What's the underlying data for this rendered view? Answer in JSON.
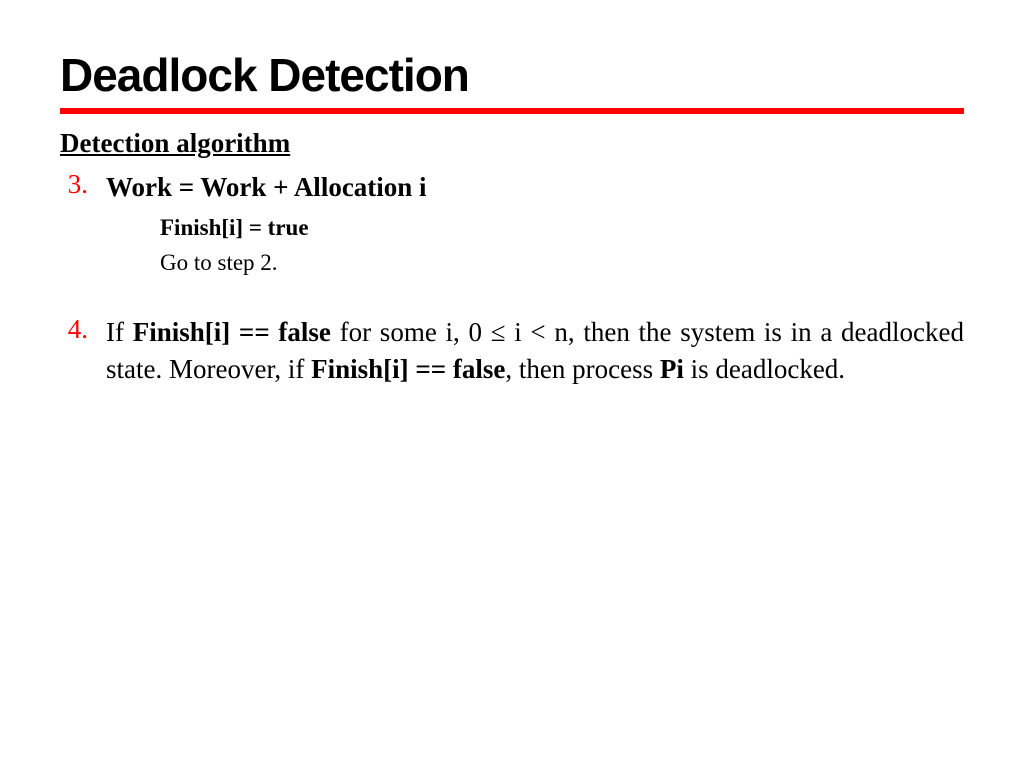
{
  "slide": {
    "title": "Deadlock Detection",
    "subtitle": "Detection algorithm",
    "item3": {
      "num": "3.",
      "main": "Work = Work + Allocation i",
      "sub_a": "Finish[i] = true",
      "sub_b": "Go to step 2."
    },
    "item4": {
      "num": "4.",
      "t1": "If ",
      "t2": "Finish[i] == false",
      "t3": " for some i, 0 ≤ i < n, then the system is in a deadlocked state. Moreover, if ",
      "t4": "Finish[i] == false",
      "t5": ", then process ",
      "t6": "Pi",
      "t7": " is deadlocked."
    }
  },
  "style": {
    "title_fontsize": 46,
    "body_fontsize": 27,
    "sub_fontsize": 23,
    "accent_color": "#ff0000",
    "underline_color": "#ff0000",
    "background": "#ffffff",
    "text_color": "#000000",
    "font_title": "Arial Black",
    "font_body": "Times New Roman"
  }
}
